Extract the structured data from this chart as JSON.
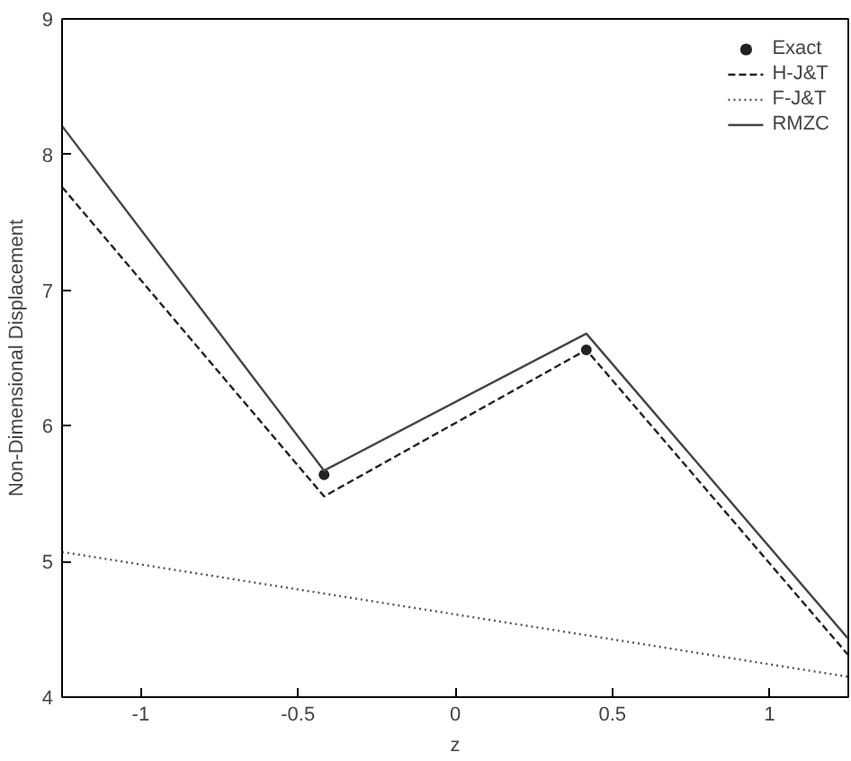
{
  "chart_data": {
    "type": "line",
    "xlabel": "z",
    "ylabel": "Non-Dimensional Displacement",
    "xlim": [
      -1.25,
      1.25
    ],
    "ylim": [
      4,
      9
    ],
    "xticks": [
      -1,
      -0.5,
      0,
      0.5,
      1
    ],
    "yticks": [
      4,
      5,
      6,
      7,
      8,
      9
    ],
    "grid": false,
    "legend": "top right",
    "series": [
      {
        "name": "Exact",
        "type": "scatter",
        "marker": "circle",
        "color": "#222222",
        "x": [
          -0.417,
          0.417
        ],
        "values": [
          5.64,
          6.56
        ]
      },
      {
        "name": "H-J&T",
        "color": "#222222",
        "line_style": "dashed",
        "x": [
          -1.25,
          -0.417,
          0.417,
          1.25
        ],
        "values": [
          7.76,
          5.48,
          6.56,
          4.31
        ]
      },
      {
        "name": "F-J&T",
        "color": "#555555",
        "line_style": "dotted",
        "x": [
          -1.25,
          1.25
        ],
        "values": [
          5.07,
          4.15
        ]
      },
      {
        "name": "RMZC",
        "color": "#444444",
        "line_style": "solid",
        "x": [
          -1.25,
          -0.417,
          0.417,
          1.25
        ],
        "values": [
          8.21,
          5.67,
          6.68,
          4.43
        ]
      }
    ]
  }
}
